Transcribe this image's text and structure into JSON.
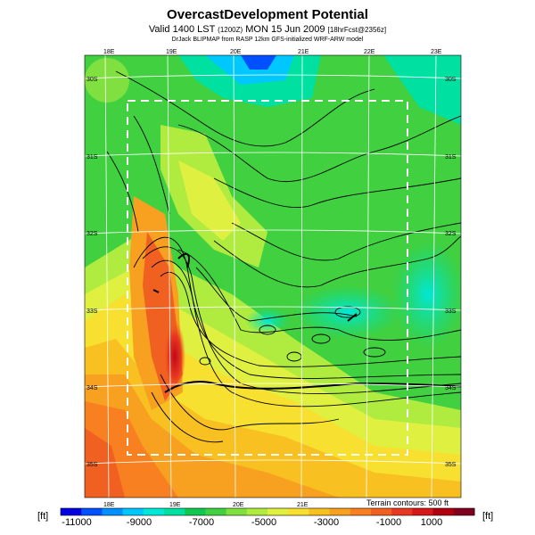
{
  "header": {
    "title": "OvercastDevelopment Potential",
    "subtitle_main": "Valid 1400 LST",
    "subtitle_small1": "(1200Z)",
    "subtitle_main2": "MON 15 Jun 2009",
    "subtitle_small2": "[18hrFcst@2356z]",
    "credit": "DrJack BLIPMAP from RASP 12km GFS-initialized WRF-ARW model"
  },
  "map": {
    "lon_labels": [
      "18E",
      "19E",
      "20E",
      "21E",
      "22E",
      "23E"
    ],
    "lat_labels": [
      "30S",
      "31S",
      "32S",
      "33S",
      "34S",
      "35S"
    ],
    "terrain_note": "Terrain contours: 500 ft"
  },
  "colorbar": {
    "unit_left": "[ft]",
    "unit_right": "[ft]",
    "ticks": [
      "-11000",
      "-9000",
      "-7000",
      "-5000",
      "-3000",
      "-1000",
      "1000"
    ],
    "colors": [
      "#0000e0",
      "#0050ff",
      "#0090ff",
      "#00c8ff",
      "#00e8d8",
      "#00e0a0",
      "#10c850",
      "#40d040",
      "#80e040",
      "#b0ec40",
      "#e0f040",
      "#f8e030",
      "#f8c020",
      "#f8a020",
      "#f88020",
      "#f06020",
      "#e83820",
      "#d81818",
      "#b00010",
      "#800020"
    ]
  }
}
